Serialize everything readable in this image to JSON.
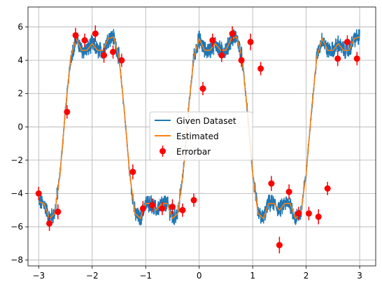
{
  "chart_data": {
    "type": "line",
    "title": "",
    "xlabel": "",
    "ylabel": "",
    "xlim": [
      -3.2,
      3.3
    ],
    "ylim": [
      -8.35,
      7.2
    ],
    "xticks": [
      -3,
      -2,
      -1,
      0,
      1,
      2,
      3
    ],
    "xtick_labels": [
      "−3",
      "−2",
      "−1",
      "0",
      "1",
      "2",
      "3"
    ],
    "yticks": [
      -8,
      -6,
      -4,
      -2,
      0,
      2,
      4,
      6
    ],
    "ytick_labels": [
      "−8",
      "−6",
      "−4",
      "−2",
      "0",
      "2",
      "4",
      "6"
    ],
    "grid": true,
    "legend_position": "center",
    "series": [
      {
        "name": "Given Dataset",
        "kind": "line",
        "color": "#1f77b4",
        "noise": 0.45,
        "points_per_unit": 300
      },
      {
        "name": "Estimated",
        "kind": "line",
        "color": "#ff7f0e",
        "x": [
          -3.0,
          -2.9,
          -2.8,
          -2.7,
          -2.6,
          -2.5,
          -2.4,
          -2.3,
          -2.2,
          -2.1,
          -2.0,
          -1.9,
          -1.8,
          -1.7,
          -1.6,
          -1.5,
          -1.4,
          -1.3,
          -1.2,
          -1.1,
          -1.0,
          -0.9,
          -0.8,
          -0.7,
          -0.6,
          -0.5,
          -0.4,
          -0.3,
          -0.2,
          -0.1,
          0.0,
          0.1,
          0.2,
          0.3,
          0.4,
          0.5,
          0.6,
          0.7,
          0.8,
          0.9,
          1.0,
          1.1,
          1.2,
          1.3,
          1.4,
          1.5,
          1.6,
          1.7,
          1.8,
          1.9,
          2.0,
          2.1,
          2.2,
          2.3,
          2.4,
          2.5,
          2.6,
          2.7,
          2.8,
          2.9,
          3.0
        ],
        "y": [
          -4.5,
          -4.6,
          -5.5,
          -5.2,
          -2.8,
          1.0,
          4.2,
          5.3,
          4.6,
          4.6,
          5.0,
          4.6,
          4.6,
          5.3,
          5.4,
          4.2,
          1.0,
          -2.8,
          -5.2,
          -5.5,
          -4.6,
          -4.6,
          -5.0,
          -4.6,
          -4.6,
          -5.5,
          -5.2,
          -2.8,
          1.0,
          4.2,
          5.3,
          4.6,
          4.6,
          5.0,
          4.6,
          4.6,
          5.3,
          5.4,
          4.2,
          1.0,
          -2.8,
          -5.2,
          -5.5,
          -4.6,
          -4.6,
          -5.0,
          -4.6,
          -4.6,
          -5.5,
          -5.2,
          -2.8,
          1.0,
          4.2,
          5.3,
          4.6,
          4.6,
          5.0,
          4.6,
          4.6,
          5.3,
          5.4
        ]
      },
      {
        "name": "Errorbar",
        "kind": "errorbar",
        "color": "#ff0000",
        "x": [
          -3.0,
          -2.8,
          -2.64,
          -2.47,
          -2.31,
          -2.14,
          -1.94,
          -1.78,
          -1.61,
          -1.45,
          -1.24,
          -1.05,
          -0.88,
          -0.69,
          -0.5,
          -0.31,
          -0.1,
          0.07,
          0.25,
          0.42,
          0.62,
          0.79,
          0.96,
          1.15,
          1.35,
          1.5,
          1.68,
          1.86,
          2.05,
          2.23,
          2.4,
          2.59,
          2.77,
          2.95
        ],
        "y": [
          -4.0,
          -5.8,
          -5.1,
          0.9,
          5.5,
          5.2,
          5.6,
          4.3,
          4.5,
          4.0,
          -2.7,
          -4.9,
          -4.7,
          -4.9,
          -4.8,
          -5.0,
          -4.4,
          2.3,
          5.2,
          4.3,
          5.6,
          4.0,
          5.1,
          3.5,
          -3.4,
          -7.1,
          -3.9,
          -5.2,
          -5.2,
          -5.4,
          -3.7,
          4.1,
          5.1,
          4.1
        ],
        "yerr": [
          0.4,
          0.45,
          0.45,
          0.4,
          0.45,
          0.4,
          0.5,
          0.45,
          0.4,
          0.4,
          0.45,
          0.45,
          0.4,
          0.4,
          0.45,
          0.4,
          0.4,
          0.4,
          0.4,
          0.4,
          0.45,
          0.4,
          0.5,
          0.4,
          0.45,
          0.5,
          0.45,
          0.4,
          0.4,
          0.45,
          0.4,
          0.45,
          0.4,
          0.4
        ]
      }
    ],
    "legend": [
      "Given Dataset",
      "Estimated",
      "Errorbar"
    ]
  }
}
